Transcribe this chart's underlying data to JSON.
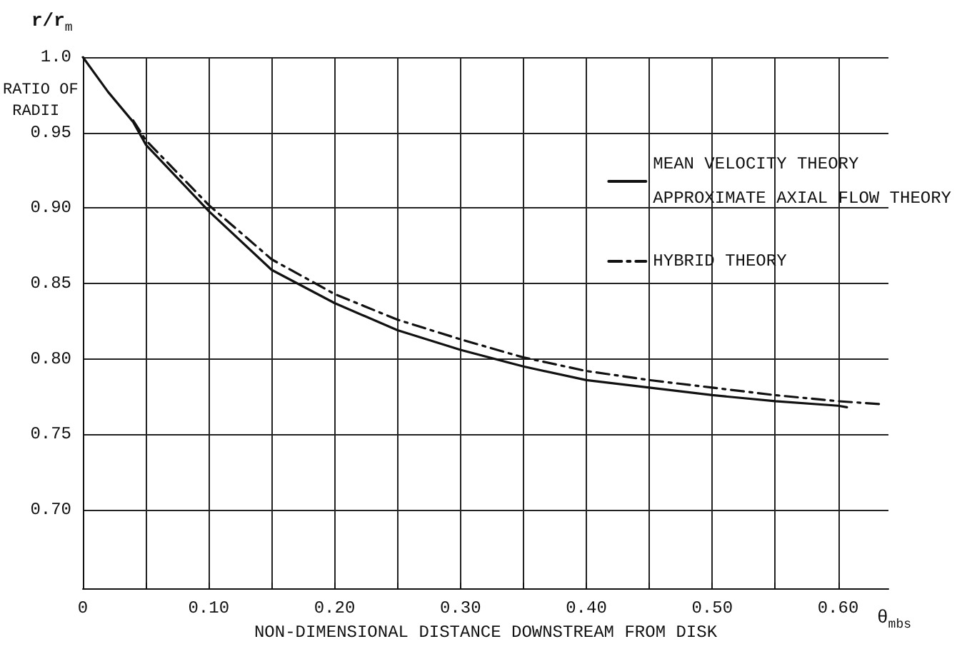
{
  "chart_data": {
    "type": "line",
    "xlabel": "NON-DIMENSIONAL DISTANCE DOWNSTREAM FROM DISK",
    "ylabel": "RATIO OF RADII",
    "annotations": [
      "r/r$_{m}$",
      "θ$_{mbs}$"
    ],
    "series": [
      {
        "name": "MEAN VELOCITY THEORY\nAPPROXIMATE AXIAL FLOW THEORY",
        "color": "#111111",
        "line_style": "solid",
        "x": [
          0,
          0.02,
          0.04,
          0.05,
          0.1,
          0.15,
          0.2,
          0.25,
          0.3,
          0.35,
          0.4,
          0.45,
          0.5,
          0.55,
          0.6,
          0.607
        ],
        "values": [
          1.0,
          0.977,
          0.957,
          0.942,
          0.898,
          0.859,
          0.837,
          0.819,
          0.806,
          0.795,
          0.786,
          0.781,
          0.776,
          0.772,
          0.769,
          0.768
        ]
      },
      {
        "name": "HYBRID THEORY",
        "color": "#111111",
        "line_style": "dashdot",
        "x": [
          0.04,
          0.05,
          0.1,
          0.15,
          0.2,
          0.25,
          0.3,
          0.35,
          0.4,
          0.45,
          0.5,
          0.55,
          0.6,
          0.635
        ],
        "values": [
          0.958,
          0.945,
          0.902,
          0.866,
          0.843,
          0.826,
          0.813,
          0.801,
          0.792,
          0.786,
          0.781,
          0.776,
          0.772,
          0.77
        ]
      }
    ],
    "xlim": [
      0,
      0.64
    ],
    "xticks": [
      0,
      {
        "value": 0.05,
        "label": null
      },
      {
        "value": 0.1,
        "label": "0.10"
      },
      {
        "value": 0.15,
        "label": null
      },
      {
        "value": 0.2,
        "label": "0.20"
      },
      {
        "value": 0.25,
        "label": null
      },
      {
        "value": 0.3,
        "label": "0.30"
      },
      {
        "value": 0.35,
        "label": null
      },
      {
        "value": 0.4,
        "label": "0.40"
      },
      {
        "value": 0.45,
        "label": null
      },
      {
        "value": 0.5,
        "label": "0.50"
      },
      {
        "value": 0.55,
        "label": null
      },
      {
        "value": 0.6,
        "label": "0.60"
      }
    ],
    "ylim": [
      0.648,
      1.0
    ],
    "yticks": [
      {
        "value": 0.7,
        "label": "0.70"
      },
      {
        "value": 0.75,
        "label": "0.75"
      },
      {
        "value": 0.8,
        "label": "0.80"
      },
      {
        "value": 0.85,
        "label": "0.85"
      },
      {
        "value": 0.9,
        "label": "0.90"
      },
      {
        "value": 0.95,
        "label": "0.95"
      },
      {
        "value": 1.0,
        "label": "1.0"
      }
    ],
    "grid": true,
    "legend": "top right",
    "marker": "none"
  }
}
